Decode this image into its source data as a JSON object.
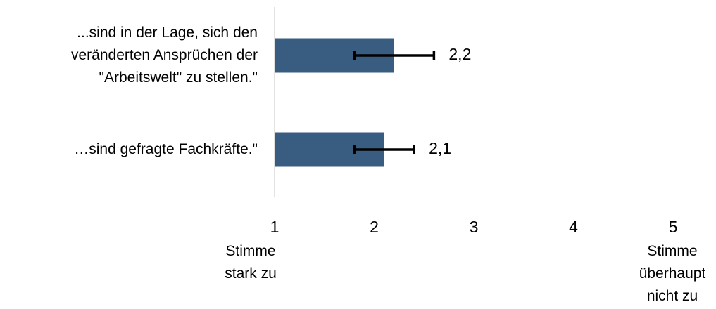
{
  "chart_data": {
    "type": "bar",
    "orientation": "horizontal",
    "categories": [
      "...sind in der Lage, sich den veränderten Ansprüchen der \"Arbeitswelt\" zu stellen.\"",
      "…sind gefragte Fachkräfte.\""
    ],
    "values": [
      2.2,
      2.1
    ],
    "value_labels": [
      "2,2",
      "2,1"
    ],
    "errors": [
      0.4,
      0.3
    ],
    "color": "#385d80",
    "xlim": [
      1,
      5
    ],
    "xticks": [
      1,
      2,
      3,
      4,
      5
    ],
    "annotations": [
      "Stimme stark zu",
      "Stimme überhaupt nicht zu"
    ]
  }
}
